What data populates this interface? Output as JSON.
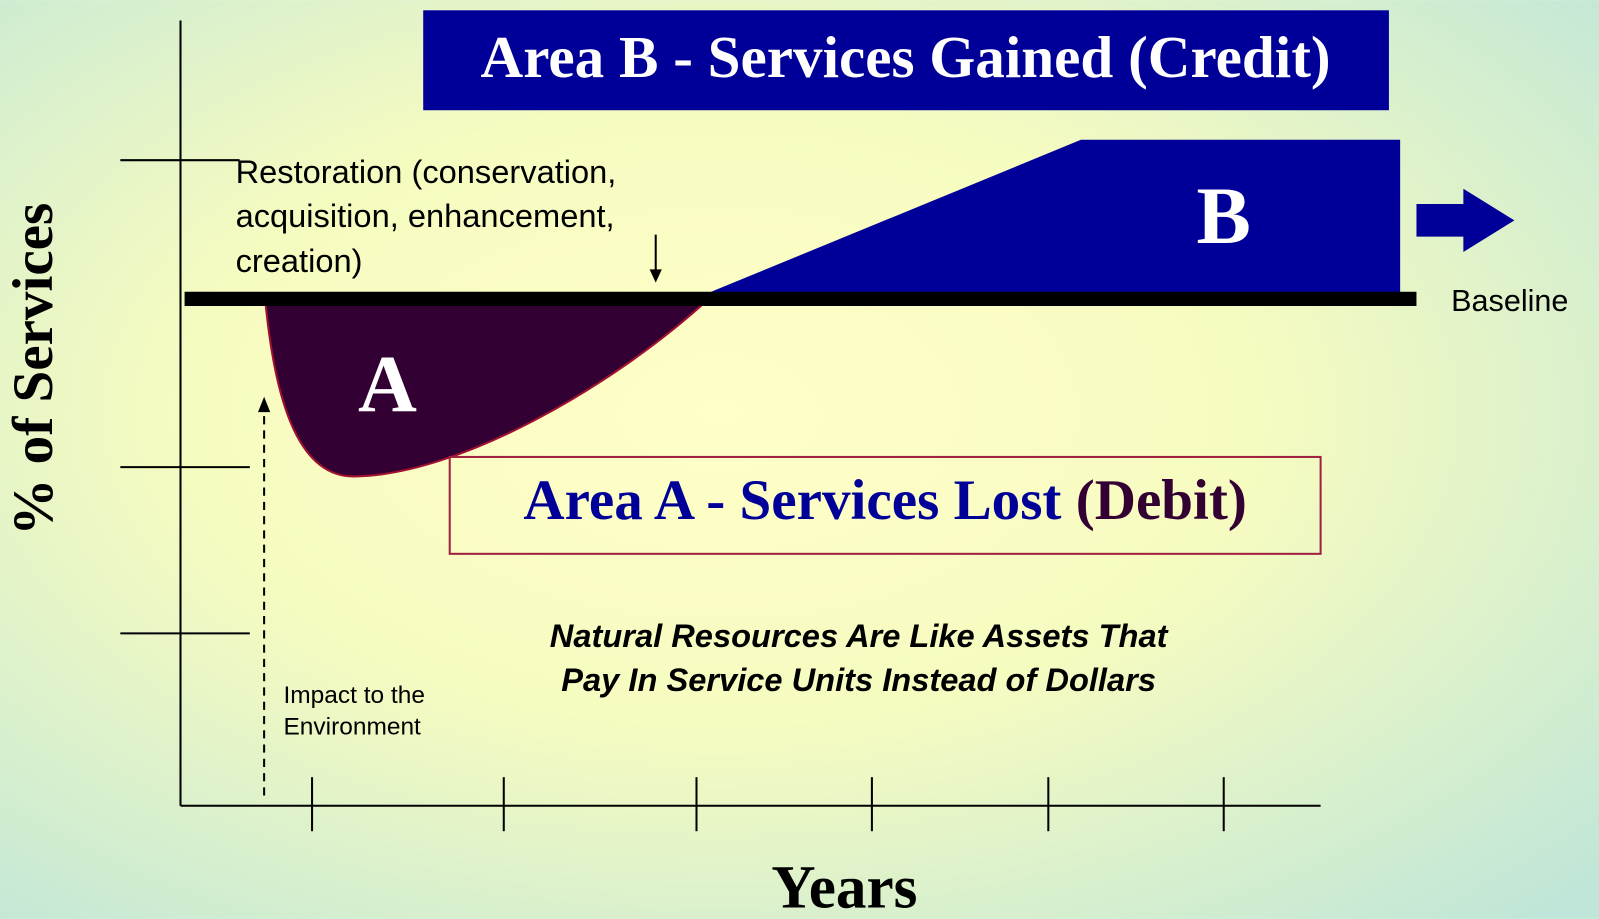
{
  "title": "Area B - Services Gained (Credit)",
  "area_b_label": "B",
  "area_a_label": "A",
  "restoration_lines": [
    "Restoration (conservation,",
    "acquisition, enhancement,",
    "creation)"
  ],
  "baseline_label": "Baseline",
  "area_a_caption": {
    "main": "Area A -  Services Lost ",
    "debit": "(Debit)"
  },
  "note_lines": [
    "Natural Resources Are Like Assets That",
    "Pay In Service Units Instead of Dollars"
  ],
  "impact_lines": [
    "Impact to the",
    "Environment"
  ],
  "y_axis_label": "% of Services",
  "x_axis_label": "Years"
}
